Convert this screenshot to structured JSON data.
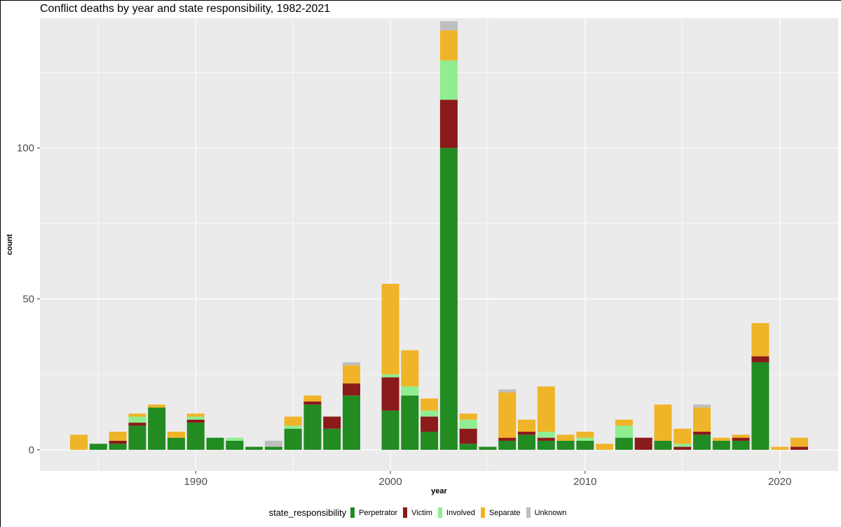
{
  "chart_data": {
    "type": "bar",
    "stacked": true,
    "title": "Conflict deaths by year and state responsibility, 1982-2021",
    "xlabel": "year",
    "ylabel": "count",
    "xlim": [
      1982,
      2023
    ],
    "ylim": [
      -7,
      143
    ],
    "x_ticks": [
      1990,
      2000,
      2010,
      2020
    ],
    "y_ticks": [
      0,
      50,
      100
    ],
    "legend_title": "state_responsibility",
    "legend_position": "bottom",
    "grid": true,
    "series": [
      {
        "name": "Perpetrator",
        "color": "#228b22",
        "values": [
          [
            1985,
            2
          ],
          [
            1986,
            2
          ],
          [
            1987,
            8
          ],
          [
            1988,
            14
          ],
          [
            1989,
            4
          ],
          [
            1990,
            9
          ],
          [
            1991,
            4
          ],
          [
            1992,
            3
          ],
          [
            1993,
            1
          ],
          [
            1994,
            1
          ],
          [
            1995,
            7
          ],
          [
            1996,
            15
          ],
          [
            1997,
            7
          ],
          [
            1998,
            18
          ],
          [
            2000,
            13
          ],
          [
            2001,
            18
          ],
          [
            2002,
            6
          ],
          [
            2003,
            100
          ],
          [
            2004,
            2
          ],
          [
            2005,
            1
          ],
          [
            2006,
            3
          ],
          [
            2007,
            5
          ],
          [
            2008,
            3
          ],
          [
            2009,
            3
          ],
          [
            2010,
            3
          ],
          [
            2012,
            4
          ],
          [
            2014,
            3
          ],
          [
            2016,
            5
          ],
          [
            2017,
            3
          ],
          [
            2018,
            3
          ],
          [
            2019,
            29
          ]
        ]
      },
      {
        "name": "Victim",
        "color": "#8b1a1a",
        "values": [
          [
            1986,
            1
          ],
          [
            1987,
            1
          ],
          [
            1990,
            1
          ],
          [
            1996,
            1
          ],
          [
            1997,
            4
          ],
          [
            1998,
            4
          ],
          [
            2000,
            11
          ],
          [
            2002,
            5
          ],
          [
            2003,
            16
          ],
          [
            2004,
            5
          ],
          [
            2006,
            1
          ],
          [
            2007,
            1
          ],
          [
            2008,
            1
          ],
          [
            2013,
            4
          ],
          [
            2015,
            1
          ],
          [
            2016,
            1
          ],
          [
            2018,
            1
          ],
          [
            2019,
            2
          ],
          [
            2021,
            1
          ]
        ]
      },
      {
        "name": "Involved",
        "color": "#90ee90",
        "values": [
          [
            1987,
            2
          ],
          [
            1990,
            1
          ],
          [
            1992,
            1
          ],
          [
            1995,
            1
          ],
          [
            2000,
            1
          ],
          [
            2001,
            3
          ],
          [
            2002,
            2
          ],
          [
            2003,
            13
          ],
          [
            2004,
            3
          ],
          [
            2008,
            2
          ],
          [
            2010,
            1
          ],
          [
            2012,
            4
          ],
          [
            2015,
            1
          ]
        ]
      },
      {
        "name": "Separate",
        "color": "#f0b429",
        "values": [
          [
            1984,
            5
          ],
          [
            1986,
            3
          ],
          [
            1987,
            1
          ],
          [
            1988,
            1
          ],
          [
            1989,
            2
          ],
          [
            1990,
            1
          ],
          [
            1995,
            3
          ],
          [
            1996,
            2
          ],
          [
            1998,
            6
          ],
          [
            2000,
            30
          ],
          [
            2001,
            12
          ],
          [
            2002,
            4
          ],
          [
            2003,
            10
          ],
          [
            2004,
            2
          ],
          [
            2006,
            15
          ],
          [
            2007,
            4
          ],
          [
            2008,
            15
          ],
          [
            2009,
            2
          ],
          [
            2010,
            2
          ],
          [
            2011,
            2
          ],
          [
            2012,
            2
          ],
          [
            2014,
            12
          ],
          [
            2015,
            5
          ],
          [
            2016,
            8
          ],
          [
            2017,
            1
          ],
          [
            2018,
            1
          ],
          [
            2019,
            11
          ],
          [
            2020,
            1
          ],
          [
            2021,
            3
          ]
        ]
      },
      {
        "name": "Unknown",
        "color": "#bebebe",
        "values": [
          [
            1994,
            2
          ],
          [
            1998,
            1
          ],
          [
            2003,
            3
          ],
          [
            2006,
            1
          ],
          [
            2016,
            1
          ]
        ]
      }
    ]
  }
}
